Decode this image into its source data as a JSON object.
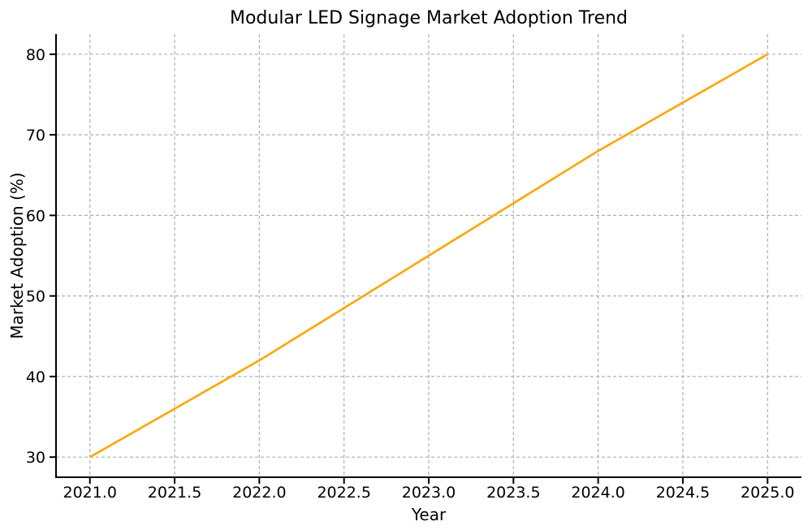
{
  "page": {
    "background": "#ffffff"
  },
  "chart_data": {
    "type": "line",
    "title": "Modular LED Signage Market Adoption Trend",
    "xlabel": "Year",
    "ylabel": "Market Adoption (%)",
    "x": [
      2021,
      2022,
      2023,
      2024,
      2025
    ],
    "series": [
      {
        "name": "Market Adoption (%)",
        "values": [
          30,
          42,
          55,
          68,
          80
        ],
        "color": "#FFA500",
        "linewidth": 2.6
      }
    ],
    "xlim": [
      2020.8,
      2025.2
    ],
    "ylim": [
      27.5,
      82.5
    ],
    "xticks": {
      "values": [
        2021.0,
        2021.5,
        2022.0,
        2022.5,
        2023.0,
        2023.5,
        2024.0,
        2024.5,
        2025.0
      ],
      "labels": [
        "2021.0",
        "2021.5",
        "2022.0",
        "2022.5",
        "2023.0",
        "2023.5",
        "2024.0",
        "2024.5",
        "2025.0"
      ]
    },
    "yticks": {
      "values": [
        30,
        40,
        50,
        60,
        70,
        80
      ],
      "labels": [
        "30",
        "40",
        "50",
        "60",
        "70",
        "80"
      ]
    },
    "grid": true,
    "grid_color": "#b0b0b0",
    "grid_dash": "4 3",
    "axis_color": "#000000",
    "legend": "none"
  }
}
